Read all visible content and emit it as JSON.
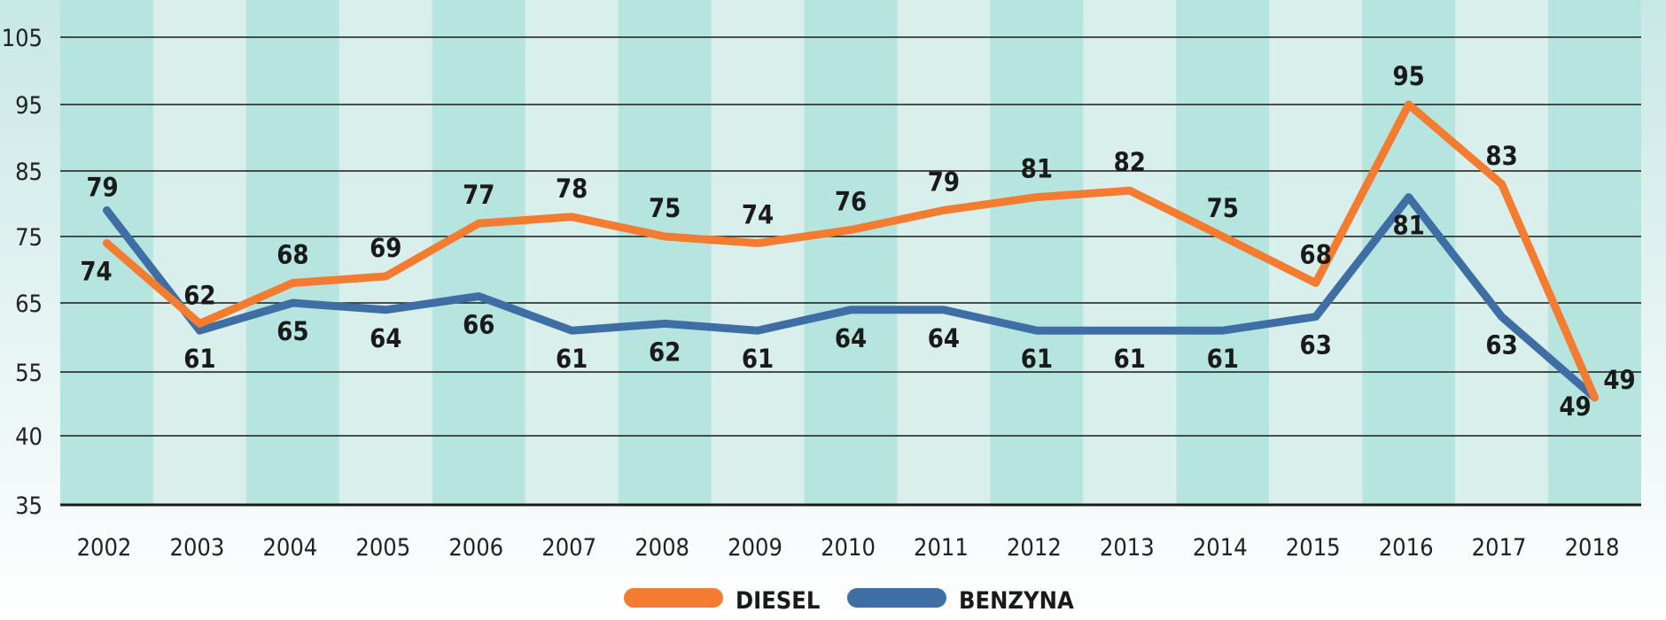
{
  "chart_data": {
    "type": "line",
    "title": "",
    "xlabel": "",
    "ylabel": "",
    "categories": [
      "2002",
      "2003",
      "2004",
      "2005",
      "2006",
      "2007",
      "2008",
      "2009",
      "2010",
      "2011",
      "2012",
      "2013",
      "2014",
      "2015",
      "2016",
      "2017",
      "2018"
    ],
    "y_ticks": [
      "105",
      "95",
      "85",
      "75",
      "65",
      "55",
      "40",
      "35"
    ],
    "series": [
      {
        "name": "DIESEL",
        "color": "#f47c30",
        "values": [
          74,
          62,
          68,
          69,
          77,
          78,
          75,
          74,
          76,
          79,
          81,
          82,
          75,
          68,
          95,
          83,
          49
        ]
      },
      {
        "name": "BENZYNA",
        "color": "#3f6ea4",
        "values": [
          79,
          61,
          65,
          64,
          66,
          61,
          62,
          61,
          64,
          64,
          61,
          61,
          61,
          63,
          81,
          63,
          49
        ]
      }
    ],
    "legend": {
      "placement": "bottom-center",
      "entries": [
        "DIESEL",
        "BENZYNA"
      ]
    },
    "colors": {
      "band_dark": "#b6e4df",
      "band_light": "#d8efec",
      "gridline": "#1a1a1a"
    }
  }
}
